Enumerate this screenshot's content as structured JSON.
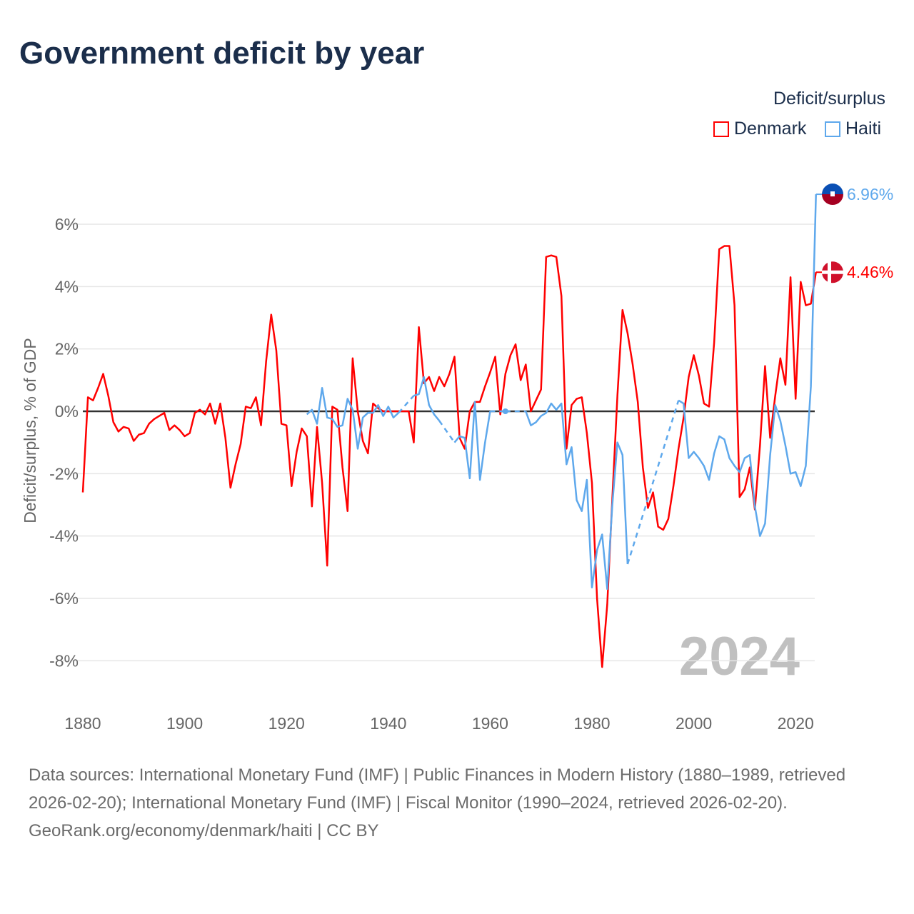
{
  "title": "Government deficit by year",
  "legend": {
    "title": "Deficit/surplus",
    "items": [
      {
        "label": "Denmark",
        "color": "#ff0000"
      },
      {
        "label": "Haiti",
        "color": "#5ea8ec"
      }
    ]
  },
  "year_watermark": "2024",
  "footer": {
    "sources": "Data sources: International Monetary Fund (IMF) | Public Finances in Modern History (1880–1989, retrieved 2026-02-20); International Monetary Fund (IMF) | Fiscal Monitor (1990–2024, retrieved 2026-02-20).",
    "credit": "GeoRank.org/economy/denmark/haiti | CC BY"
  },
  "chart_data": {
    "type": "line",
    "title": "Government deficit by year",
    "xlabel": "",
    "ylabel": "Deficit/surplus, % of GDP",
    "xlim": [
      1880,
      2024
    ],
    "ylim": [
      -9,
      7
    ],
    "xticks": [
      1880,
      1900,
      1920,
      1940,
      1960,
      1980,
      2000,
      2020
    ],
    "xtick_labels": [
      "1880",
      "1900",
      "1920",
      "1940",
      "1960",
      "1980",
      "2000",
      "2020"
    ],
    "yticks": [
      -8,
      -6,
      -4,
      -2,
      0,
      2,
      4,
      6
    ],
    "ytick_labels": [
      "-8%",
      "-6%",
      "-4%",
      "-2%",
      "0%",
      "2%",
      "4%",
      "6%"
    ],
    "grid": true,
    "legend_position": "top-right",
    "x_start": 1880,
    "series": [
      {
        "name": "Denmark",
        "color": "#ff0000",
        "end_label": "4.46%",
        "values": [
          -2.6,
          0.45,
          0.35,
          0.75,
          1.2,
          0.5,
          -0.35,
          -0.65,
          -0.5,
          -0.55,
          -0.95,
          -0.75,
          -0.7,
          -0.4,
          -0.25,
          -0.15,
          -0.05,
          -0.6,
          -0.45,
          -0.6,
          -0.8,
          -0.7,
          -0.05,
          0.05,
          -0.1,
          0.25,
          -0.4,
          0.25,
          -0.85,
          -2.45,
          -1.7,
          -1.05,
          0.15,
          0.1,
          0.45,
          -0.45,
          1.6,
          3.1,
          1.95,
          -0.4,
          -0.45,
          -2.4,
          -1.3,
          -0.55,
          -0.8,
          -3.05,
          -0.5,
          -2.3,
          -4.95,
          0.15,
          0.05,
          -1.8,
          -3.2,
          1.7,
          0.0,
          -0.95,
          -1.35,
          0.25,
          0.1,
          0.0,
          0.0,
          0.0,
          0.0,
          0.0,
          0.0,
          -1.0,
          2.7,
          0.9,
          1.1,
          0.65,
          1.1,
          0.8,
          1.2,
          1.75,
          -0.85,
          -1.2,
          0.0,
          0.3,
          0.3,
          0.8,
          1.25,
          1.75,
          -0.1,
          1.2,
          1.8,
          2.15,
          1.0,
          1.5,
          0.0,
          0.35,
          0.7,
          4.95,
          5.0,
          4.95,
          3.7,
          -1.2,
          0.2,
          0.4,
          0.45,
          -0.7,
          -2.3,
          -6.0,
          -8.2,
          -6.2,
          -2.8,
          0.5,
          3.25,
          2.5,
          1.5,
          0.3,
          -1.8,
          -3.1,
          -2.6,
          -3.7,
          -3.8,
          -3.45,
          -2.4,
          -1.2,
          -0.2,
          1.1,
          1.8,
          1.15,
          0.25,
          0.15,
          2.2,
          5.2,
          5.3,
          5.3,
          3.4,
          -2.75,
          -2.5,
          -1.8,
          -3.15,
          -1.1,
          1.45,
          -0.85,
          0.5,
          1.7,
          0.85,
          4.3,
          0.4,
          4.15,
          3.4,
          3.45,
          4.46
        ]
      },
      {
        "name": "Haiti",
        "color": "#5ea8ec",
        "end_label": "6.96%",
        "values": [
          null,
          null,
          null,
          null,
          null,
          null,
          null,
          null,
          null,
          null,
          null,
          null,
          null,
          null,
          null,
          null,
          null,
          null,
          null,
          null,
          null,
          null,
          null,
          null,
          null,
          null,
          null,
          null,
          null,
          null,
          null,
          null,
          null,
          null,
          null,
          null,
          null,
          null,
          null,
          null,
          null,
          null,
          null,
          null,
          -0.1,
          0.05,
          -0.4,
          0.75,
          -0.2,
          -0.25,
          -0.5,
          -0.45,
          0.4,
          0.05,
          -1.2,
          -0.2,
          -0.05,
          -0.05,
          0.2,
          -0.15,
          0.15,
          -0.2,
          -0.05,
          null,
          null,
          0.5,
          0.55,
          1.1,
          0.2,
          -0.1,
          -0.3,
          null,
          null,
          -1.0,
          -0.8,
          -0.85,
          -2.15,
          0.3,
          -2.2,
          -1.0,
          0.0,
          null,
          null,
          0.0,
          null,
          null,
          null,
          0.0,
          -0.45,
          -0.35,
          -0.15,
          -0.05,
          0.25,
          0.05,
          0.25,
          -1.7,
          -1.15,
          -2.85,
          -3.2,
          -2.2,
          -5.65,
          -4.45,
          -3.95,
          -5.7,
          -3.0,
          -1.0,
          -1.4,
          -4.9,
          null,
          null,
          null,
          null,
          null,
          null,
          null,
          null,
          null,
          0.35,
          0.25,
          -1.5,
          -1.3,
          -1.5,
          -1.75,
          -2.2,
          -1.35,
          -0.8,
          -0.9,
          -1.5,
          -1.75,
          -1.95,
          -1.5,
          -1.4,
          -3.05,
          -4.0,
          -3.6,
          -1.4,
          0.2,
          -0.3,
          -1.1,
          -2.0,
          -1.95,
          -2.4,
          -1.75,
          0.8,
          6.96
        ]
      }
    ]
  }
}
